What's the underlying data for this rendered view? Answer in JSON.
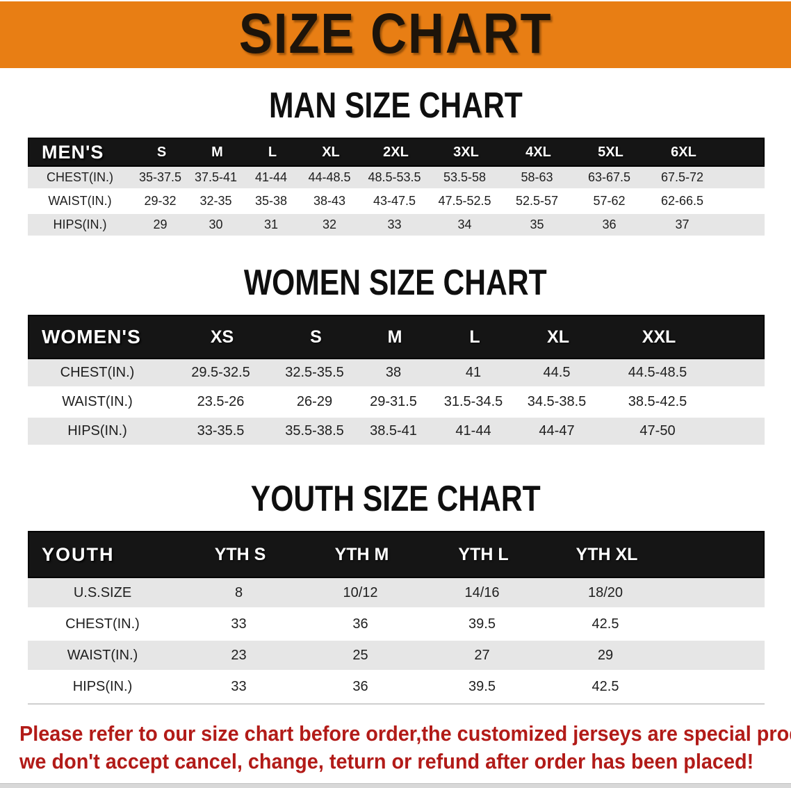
{
  "banner": {
    "title": "SIZE CHART"
  },
  "colors": {
    "banner_bg": "#E87E14",
    "header_bar": "#151515",
    "row_stripe": "#E6E6E6",
    "disclaimer_red": "#B21B18"
  },
  "sections": {
    "men": {
      "heading": "MAN SIZE CHART",
      "table": {
        "label": "MEN'S",
        "columns": [
          "S",
          "M",
          "L",
          "XL",
          "2XL",
          "3XL",
          "4XL",
          "5XL",
          "6XL"
        ],
        "rows": [
          {
            "label": "CHEST(IN.)",
            "values": [
              "35-37.5",
              "37.5-41",
              "41-44",
              "44-48.5",
              "48.5-53.5",
              "53.5-58",
              "58-63",
              "63-67.5",
              "67.5-72"
            ]
          },
          {
            "label": "WAIST(IN.)",
            "values": [
              "29-32",
              "32-35",
              "35-38",
              "38-43",
              "43-47.5",
              "47.5-52.5",
              "52.5-57",
              "57-62",
              "62-66.5"
            ]
          },
          {
            "label": "HIPS(IN.)",
            "values": [
              "29",
              "30",
              "31",
              "32",
              "33",
              "34",
              "35",
              "36",
              "37"
            ]
          }
        ]
      }
    },
    "women": {
      "heading": "WOMEN SIZE CHART",
      "table": {
        "label": "WOMEN'S",
        "columns": [
          "XS",
          "S",
          "M",
          "L",
          "XL",
          "XXL"
        ],
        "rows": [
          {
            "label": "CHEST(IN.)",
            "values": [
              "29.5-32.5",
              "32.5-35.5",
              "38",
              "41",
              "44.5",
              "44.5-48.5"
            ]
          },
          {
            "label": "WAIST(IN.)",
            "values": [
              "23.5-26",
              "26-29",
              "29-31.5",
              "31.5-34.5",
              "34.5-38.5",
              "38.5-42.5"
            ]
          },
          {
            "label": "HIPS(IN.)",
            "values": [
              "33-35.5",
              "35.5-38.5",
              "38.5-41",
              "41-44",
              "44-47",
              "47-50"
            ]
          }
        ]
      }
    },
    "youth": {
      "heading": "YOUTH SIZE CHART",
      "table": {
        "label": "YOUTH",
        "columns": [
          "YTH S",
          "YTH M",
          "YTH L",
          "YTH XL"
        ],
        "rows": [
          {
            "label": "U.S.SIZE",
            "values": [
              "8",
              "10/12",
              "14/16",
              "18/20"
            ]
          },
          {
            "label": "CHEST(IN.)",
            "values": [
              "33",
              "36",
              "39.5",
              "42.5"
            ]
          },
          {
            "label": "WAIST(IN.)",
            "values": [
              "23",
              "25",
              "27",
              "29"
            ]
          },
          {
            "label": "HIPS(IN.)",
            "values": [
              "33",
              "36",
              "39.5",
              "42.5"
            ]
          }
        ]
      }
    }
  },
  "disclaimer": {
    "line1": "Please refer to our size chart before order,the customized jerseys are special products,",
    "line2": "we don't accept cancel, change, teturn or refund after order has been placed!"
  }
}
